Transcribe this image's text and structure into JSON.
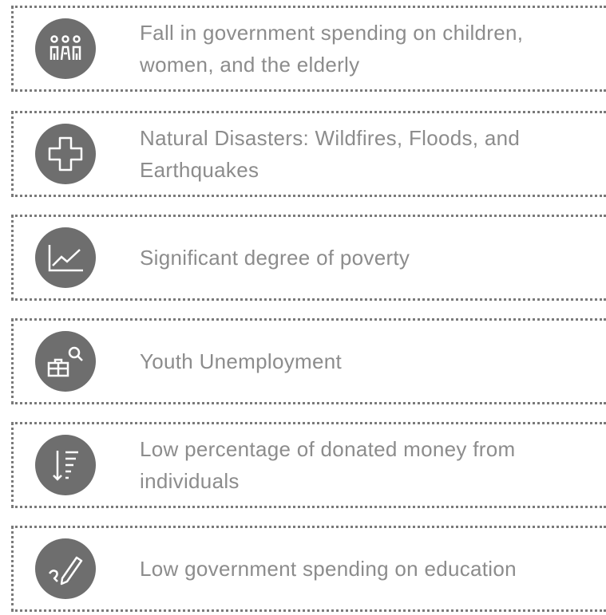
{
  "items": [
    {
      "text": "Fall in government spending on children, women, and the elderly"
    },
    {
      "text": "Natural Disasters: Wildfires, Floods, and Earthquakes"
    },
    {
      "text": "Significant degree of poverty"
    },
    {
      "text": "Youth Unemployment"
    },
    {
      "text": "Low percentage of donated money from individuals"
    },
    {
      "text": "Low government spending on education"
    }
  ]
}
